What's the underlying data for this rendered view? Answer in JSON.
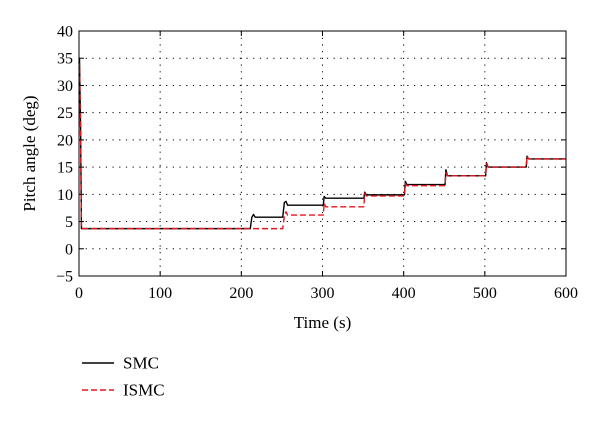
{
  "chart_data": {
    "type": "line",
    "xlabel": "Time (s)",
    "ylabel": "Pitch angle (deg)",
    "xlim": [
      0,
      600
    ],
    "ylim": [
      -5,
      40
    ],
    "xticks": [
      0,
      100,
      200,
      300,
      400,
      500,
      600
    ],
    "yticks": [
      -5,
      0,
      5,
      10,
      15,
      20,
      25,
      30,
      35,
      40
    ],
    "grid": "dotted",
    "legend_position": "bottom-left, below plot",
    "series": [
      {
        "name": "SMC",
        "color": "#000000",
        "dash": "solid",
        "points": [
          [
            0,
            34
          ],
          [
            0.6,
            35
          ],
          [
            2,
            22
          ],
          [
            3,
            3.7
          ],
          [
            210,
            3.7
          ],
          [
            211,
            3.7
          ],
          [
            213,
            5.8
          ],
          [
            215,
            6.3
          ],
          [
            217,
            5.8
          ],
          [
            250,
            5.8
          ],
          [
            251,
            5.8
          ],
          [
            253,
            8.5
          ],
          [
            255,
            8.7
          ],
          [
            257,
            8.0
          ],
          [
            300,
            8.0
          ],
          [
            301,
            8.0
          ],
          [
            302,
            9.6
          ],
          [
            304,
            9.3
          ],
          [
            350,
            9.3
          ],
          [
            351,
            9.3
          ],
          [
            352,
            10.4
          ],
          [
            354,
            9.9
          ],
          [
            400,
            9.9
          ],
          [
            401,
            9.9
          ],
          [
            402,
            12.4
          ],
          [
            404,
            11.8
          ],
          [
            450,
            11.8
          ],
          [
            451,
            11.8
          ],
          [
            452,
            14.5
          ],
          [
            454,
            13.4
          ],
          [
            500,
            13.4
          ],
          [
            501,
            13.4
          ],
          [
            502,
            15.8
          ],
          [
            504,
            15.0
          ],
          [
            550,
            15.0
          ],
          [
            551,
            15.0
          ],
          [
            552,
            17.0
          ],
          [
            554,
            16.5
          ],
          [
            600,
            16.5
          ]
        ]
      },
      {
        "name": "ISMC",
        "color": "#e8141b",
        "dash": "dashed",
        "points": [
          [
            0,
            33
          ],
          [
            0.6,
            34
          ],
          [
            2,
            20
          ],
          [
            3,
            3.7
          ],
          [
            250,
            3.7
          ],
          [
            251,
            3.7
          ],
          [
            253,
            6.0
          ],
          [
            255,
            6.8
          ],
          [
            257,
            6.2
          ],
          [
            300,
            6.2
          ],
          [
            301,
            6.2
          ],
          [
            302,
            8.4
          ],
          [
            304,
            7.7
          ],
          [
            350,
            7.7
          ],
          [
            351,
            7.7
          ],
          [
            352,
            10.2
          ],
          [
            354,
            9.7
          ],
          [
            400,
            9.7
          ],
          [
            401,
            9.7
          ],
          [
            402,
            12.0
          ],
          [
            404,
            11.6
          ],
          [
            450,
            11.6
          ],
          [
            451,
            11.6
          ],
          [
            452,
            14.0
          ],
          [
            454,
            13.4
          ],
          [
            500,
            13.4
          ],
          [
            501,
            13.4
          ],
          [
            502,
            15.6
          ],
          [
            504,
            15.0
          ],
          [
            550,
            15.0
          ],
          [
            551,
            15.0
          ],
          [
            552,
            17.0
          ],
          [
            554,
            16.5
          ],
          [
            600,
            16.5
          ]
        ]
      }
    ]
  }
}
